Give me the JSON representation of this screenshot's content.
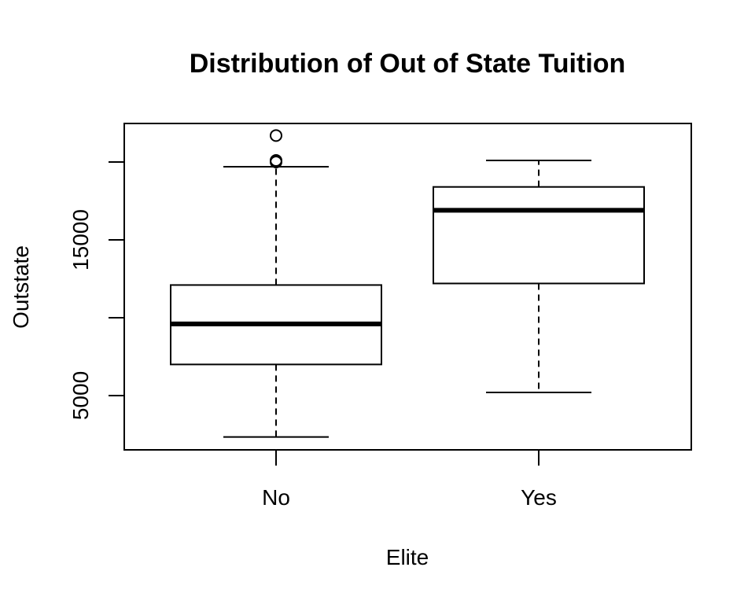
{
  "chart_data": {
    "type": "boxplot",
    "title": "Distribution of Out of State Tuition",
    "xlabel": "Elite",
    "ylabel": "Outstate",
    "categories": [
      "No",
      "Yes"
    ],
    "y_ticks": [
      5000,
      10000,
      15000,
      20000
    ],
    "y_tick_labels": [
      "5000",
      "",
      "15000",
      ""
    ],
    "ylim": [
      1500,
      22500
    ],
    "grid": false,
    "legend": "none",
    "boxes": [
      {
        "category": "No",
        "whisker_low": 2340,
        "q1": 7000,
        "median": 9600,
        "q3": 12100,
        "whisker_high": 19700,
        "outliers": [
          20000,
          20100,
          21700
        ]
      },
      {
        "category": "Yes",
        "whisker_low": 5200,
        "q1": 12200,
        "median": 16900,
        "q3": 18400,
        "whisker_high": 20100,
        "outliers": []
      }
    ]
  }
}
